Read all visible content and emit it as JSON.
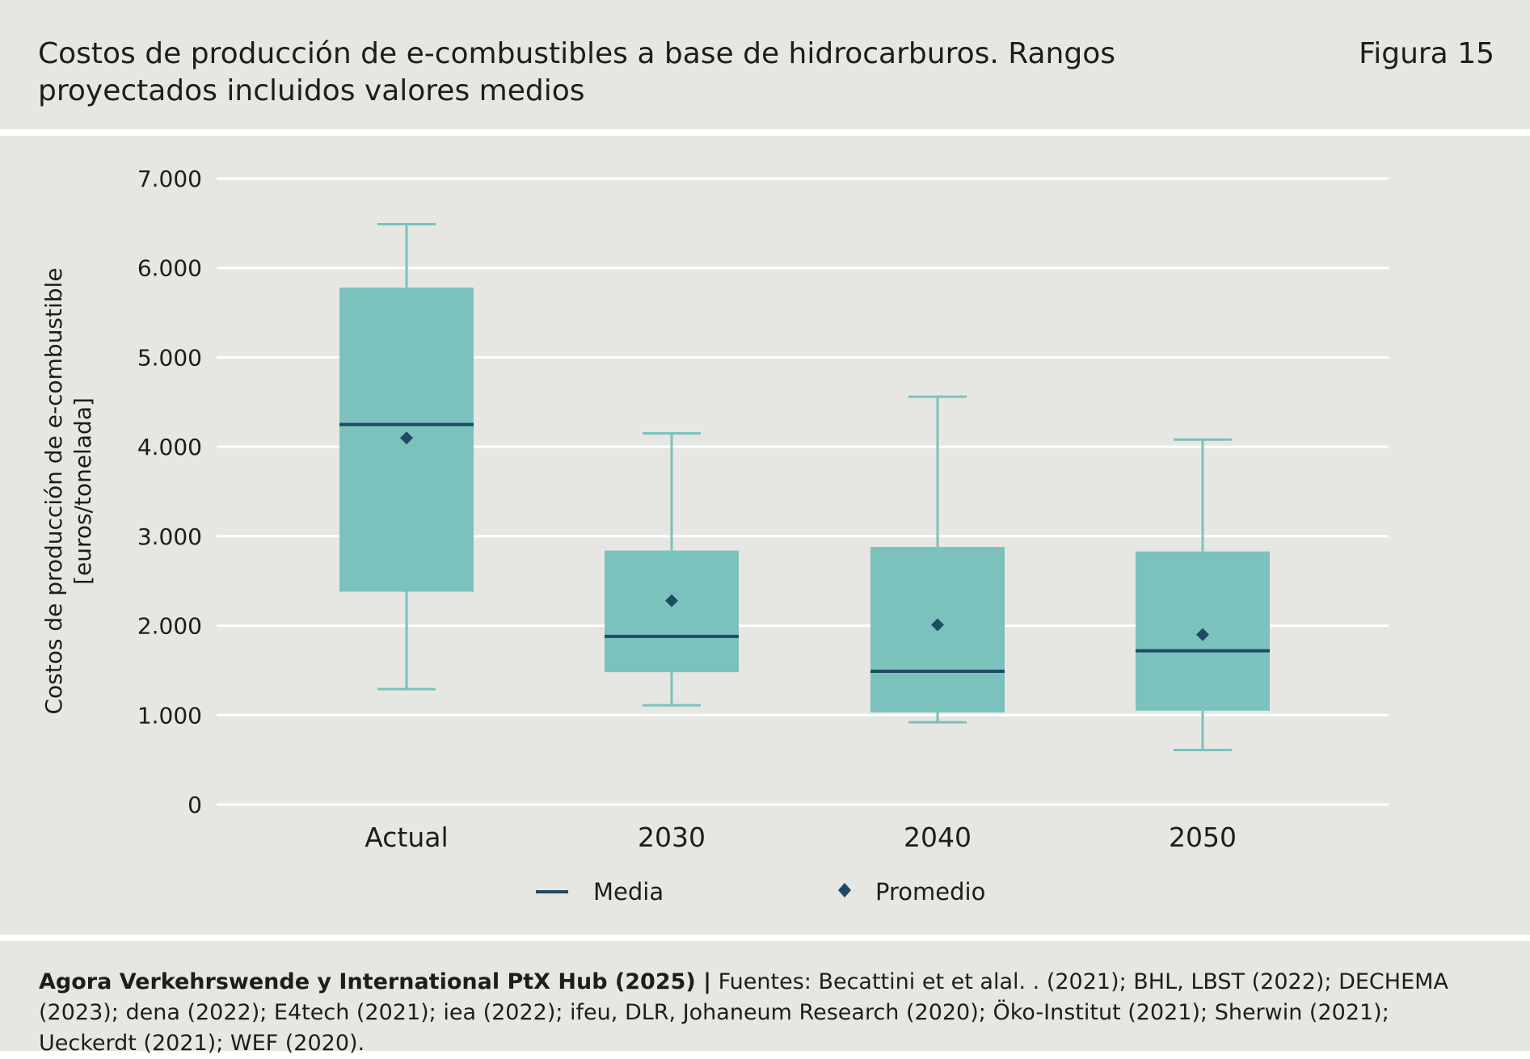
{
  "header": {
    "title": "Costos de producción de e-combustibles a base de hidrocarburos. Rangos proyectados incluidos valores medios",
    "figure_label": "Figura 15"
  },
  "footer": {
    "source_org": "Agora Verkehrswende y International PtX Hub (2025) |",
    "source_text": " Fuentes: Becattini et et alal. . (2021); BHL, LBST (2022); DECHEMA (2023); dena (2022); E4tech (2021); iea (2022); ifeu, DLR, Johaneum Research (2020); Öko-Institut (2021); Sherwin (2021); Ueckerdt (2021); WEF (2020)."
  },
  "colors": {
    "box_fill": "#7bc2bd",
    "whisker": "#7bc2bd",
    "median_line": "#1e4a63",
    "mean_marker": "#1e4a63",
    "grid": "#ffffff",
    "background": "#e6e6e2"
  },
  "chart_data": {
    "type": "boxplot",
    "ylabel_line1": "Costos de producción de e-combustible",
    "ylabel_line2": "[euros/tonelada]",
    "ylim": [
      0,
      7000
    ],
    "yticks": [
      0,
      1000,
      2000,
      3000,
      4000,
      5000,
      6000,
      7000
    ],
    "ytick_labels": [
      "0",
      "1.000",
      "2.000",
      "3.000",
      "4.000",
      "5.000",
      "6.000",
      "7.000"
    ],
    "grid": true,
    "categories": [
      "Actual",
      "2030",
      "2040",
      "2050"
    ],
    "boxes": [
      {
        "category": "Actual",
        "min": 1290,
        "q1": 2380,
        "median": 4250,
        "mean": 4100,
        "q3": 5780,
        "max": 6490
      },
      {
        "category": "2030",
        "min": 1110,
        "q1": 1480,
        "median": 1880,
        "mean": 2280,
        "q3": 2840,
        "max": 4150
      },
      {
        "category": "2040",
        "min": 920,
        "q1": 1030,
        "median": 1490,
        "mean": 2010,
        "q3": 2880,
        "max": 4560
      },
      {
        "category": "2050",
        "min": 610,
        "q1": 1050,
        "median": 1720,
        "mean": 1900,
        "q3": 2830,
        "max": 4080
      }
    ],
    "legend": [
      {
        "label": "Media",
        "symbol": "line"
      },
      {
        "label": "Promedio",
        "symbol": "diamond"
      }
    ],
    "legend_position": "bottom"
  }
}
